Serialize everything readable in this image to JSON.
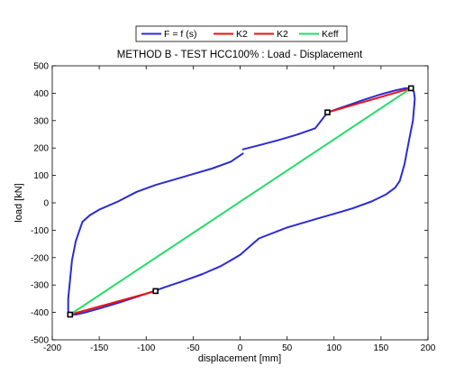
{
  "chart_data": {
    "type": "line",
    "title": "METHOD B - TEST HCC100% : Load - Displacement",
    "xlabel": "displacement [mm]",
    "ylabel": "load [kN]",
    "xlim": [
      -200,
      200
    ],
    "ylim": [
      -500,
      500
    ],
    "xticks": [
      -200,
      -150,
      -100,
      -50,
      0,
      50,
      100,
      150,
      200
    ],
    "yticks": [
      -500,
      -400,
      -300,
      -200,
      -100,
      0,
      100,
      200,
      300,
      400,
      500
    ],
    "grid": false,
    "legend_position": "top-center",
    "series": [
      {
        "name": "F = f (s)",
        "color": "#2b2bd4",
        "segments": [
          [
            [
              3,
              195
            ],
            [
              20,
              210
            ],
            [
              40,
              228
            ],
            [
              60,
              248
            ],
            [
              80,
              272
            ],
            [
              93,
              330
            ],
            [
              110,
              350
            ],
            [
              130,
              374
            ],
            [
              150,
              396
            ],
            [
              165,
              410
            ],
            [
              176,
              418
            ],
            [
              182,
              418
            ],
            [
              185,
              405
            ],
            [
              186,
              380
            ],
            [
              184,
              300
            ],
            [
              180,
              230
            ],
            [
              175,
              140
            ],
            [
              170,
              80
            ],
            [
              165,
              55
            ],
            [
              155,
              30
            ],
            [
              140,
              5
            ],
            [
              120,
              -20
            ],
            [
              100,
              -40
            ],
            [
              80,
              -60
            ],
            [
              50,
              -90
            ],
            [
              20,
              -130
            ],
            [
              0,
              -190
            ],
            [
              -20,
              -230
            ],
            [
              -40,
              -260
            ],
            [
              -60,
              -285
            ],
            [
              -80,
              -308
            ],
            [
              -90,
              -320
            ],
            [
              -110,
              -343
            ],
            [
              -130,
              -365
            ],
            [
              -150,
              -386
            ],
            [
              -165,
              -400
            ],
            [
              -175,
              -408
            ],
            [
              -181,
              -408
            ],
            [
              -183,
              -395
            ],
            [
              -183,
              -350
            ],
            [
              -181,
              -280
            ],
            [
              -179,
              -210
            ],
            [
              -175,
              -140
            ],
            [
              -168,
              -70
            ],
            [
              -160,
              -45
            ],
            [
              -150,
              -25
            ],
            [
              -130,
              5
            ],
            [
              -110,
              40
            ],
            [
              -90,
              65
            ],
            [
              -70,
              85
            ],
            [
              -50,
              105
            ],
            [
              -30,
              125
            ],
            [
              -10,
              150
            ],
            [
              3,
              180
            ]
          ]
        ]
      },
      {
        "name": "K2",
        "color": "#ee1111",
        "segments": [
          [
            [
              93,
              330
            ],
            [
              182,
              418
            ]
          ]
        ]
      },
      {
        "name": "K2",
        "color": "#ee1111",
        "segments": [
          [
            [
              -181,
              -408
            ],
            [
              -90,
              -322
            ]
          ]
        ]
      },
      {
        "name": "Keff",
        "color": "#22dd66",
        "segments": [
          [
            [
              -181,
              -408
            ],
            [
              182,
              418
            ]
          ]
        ]
      }
    ],
    "markers": [
      [
        93,
        330
      ],
      [
        182,
        418
      ],
      [
        -90,
        -322
      ],
      [
        -181,
        -408
      ]
    ]
  }
}
